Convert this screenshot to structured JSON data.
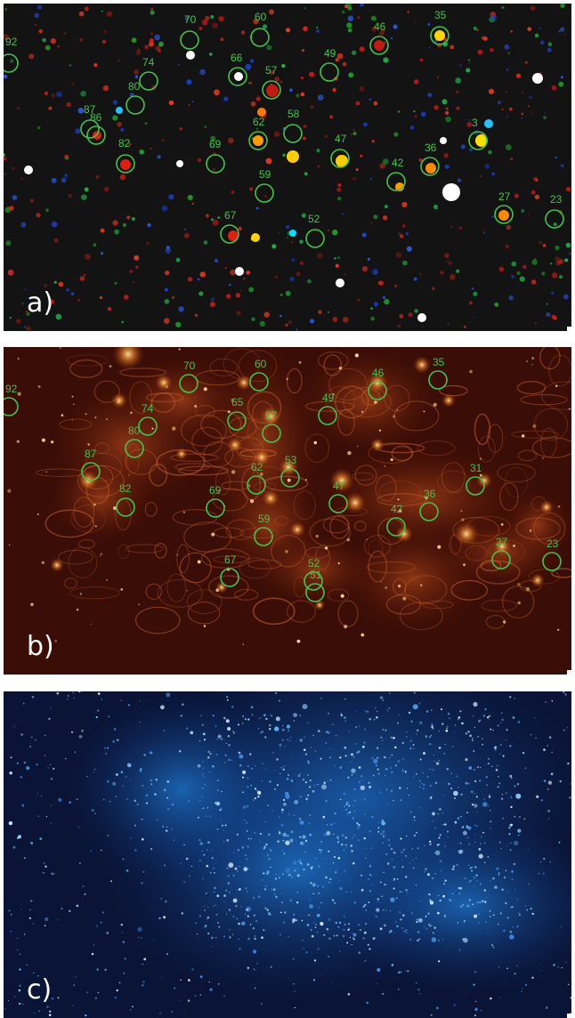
{
  "colors": {
    "marker": "#3fc64a",
    "panel_a_bg": "#141414",
    "panel_b_bg": "#3a0d06",
    "panel_c_bg": "#0a1436",
    "label_text": "#ffffff"
  },
  "panels": [
    {
      "id": "a",
      "label": "a)",
      "style": "multi-band composite",
      "markers": [
        {
          "id": "92"
        },
        {
          "id": "70"
        },
        {
          "id": "60"
        },
        {
          "id": "46"
        },
        {
          "id": "35"
        },
        {
          "id": "74"
        },
        {
          "id": "66"
        },
        {
          "id": "49"
        },
        {
          "id": "80"
        },
        {
          "id": "57"
        },
        {
          "id": "87"
        },
        {
          "id": "86"
        },
        {
          "id": "58"
        },
        {
          "id": "62"
        },
        {
          "id": "3"
        },
        {
          "id": "82"
        },
        {
          "id": "69"
        },
        {
          "id": "47"
        },
        {
          "id": "36"
        },
        {
          "id": "42"
        },
        {
          "id": "59"
        },
        {
          "id": "27"
        },
        {
          "id": "23"
        },
        {
          "id": "67"
        },
        {
          "id": "52"
        }
      ]
    },
    {
      "id": "b",
      "label": "b)",
      "style": "infrared emission",
      "markers": [
        {
          "id": "92"
        },
        {
          "id": "70"
        },
        {
          "id": "60"
        },
        {
          "id": "46"
        },
        {
          "id": "35"
        },
        {
          "id": "65"
        },
        {
          "id": "57"
        },
        {
          "id": "49"
        },
        {
          "id": "74"
        },
        {
          "id": "80"
        },
        {
          "id": "87"
        },
        {
          "id": "62"
        },
        {
          "id": "53"
        },
        {
          "id": "47"
        },
        {
          "id": "31"
        },
        {
          "id": "82"
        },
        {
          "id": "69"
        },
        {
          "id": "36"
        },
        {
          "id": "42"
        },
        {
          "id": "59"
        },
        {
          "id": "27"
        },
        {
          "id": "23"
        },
        {
          "id": "67"
        },
        {
          "id": "52"
        },
        {
          "id": "51"
        }
      ]
    },
    {
      "id": "c",
      "label": "c)",
      "style": "optical star field",
      "markers": []
    }
  ]
}
